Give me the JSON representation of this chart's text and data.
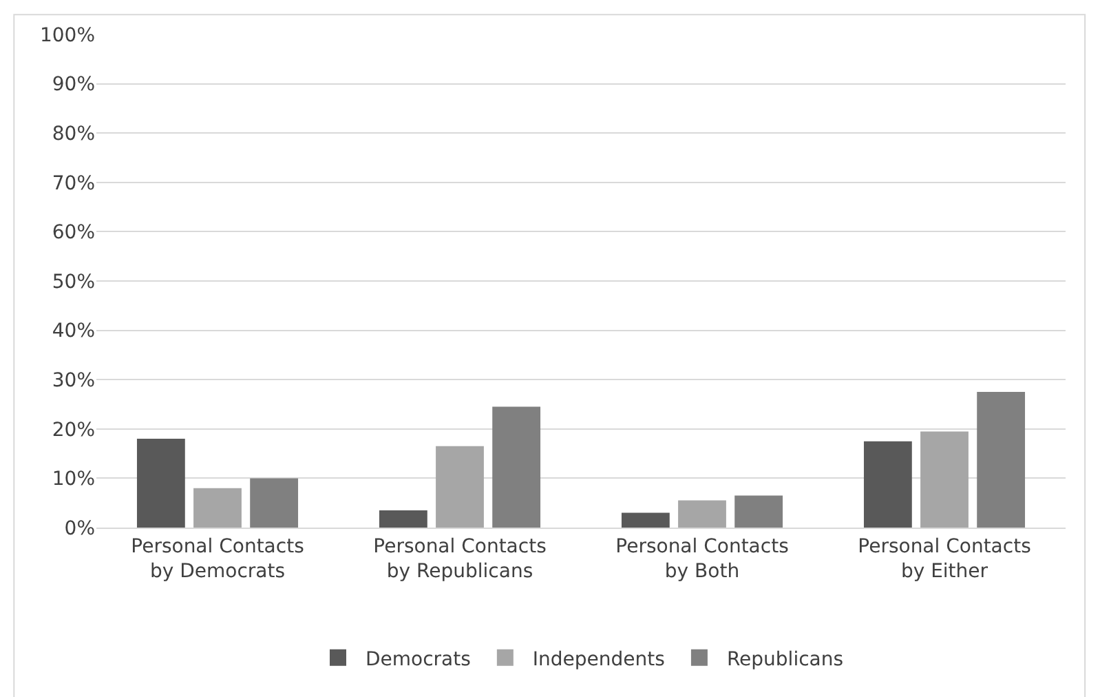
{
  "chart_data": {
    "type": "bar",
    "categories": [
      "Personal Contacts by Democrats",
      "Personal Contacts by Republicans",
      "Personal Contacts by Both",
      "Personal Contacts by Either"
    ],
    "series": [
      {
        "name": "Democrats",
        "color": "#595959",
        "values": [
          18,
          3.5,
          3,
          17.5
        ]
      },
      {
        "name": "Independents",
        "color": "#a6a6a6",
        "values": [
          8,
          16.5,
          5.5,
          19.5
        ]
      },
      {
        "name": "Republicans",
        "color": "#808080",
        "values": [
          10,
          24.5,
          6.5,
          27.5
        ]
      }
    ],
    "ylim": [
      0,
      100
    ],
    "yticks": [
      {
        "value": 0,
        "label": "0%"
      },
      {
        "value": 10,
        "label": "10%"
      },
      {
        "value": 20,
        "label": "20%"
      },
      {
        "value": 30,
        "label": "30%"
      },
      {
        "value": 40,
        "label": "40%"
      },
      {
        "value": 50,
        "label": "50%"
      },
      {
        "value": 60,
        "label": "60%"
      },
      {
        "value": 70,
        "label": "70%"
      },
      {
        "value": 80,
        "label": "80%"
      },
      {
        "value": 90,
        "label": "90%"
      },
      {
        "value": 100,
        "label": "100%"
      }
    ],
    "grid": "y",
    "legend": "bottom"
  }
}
